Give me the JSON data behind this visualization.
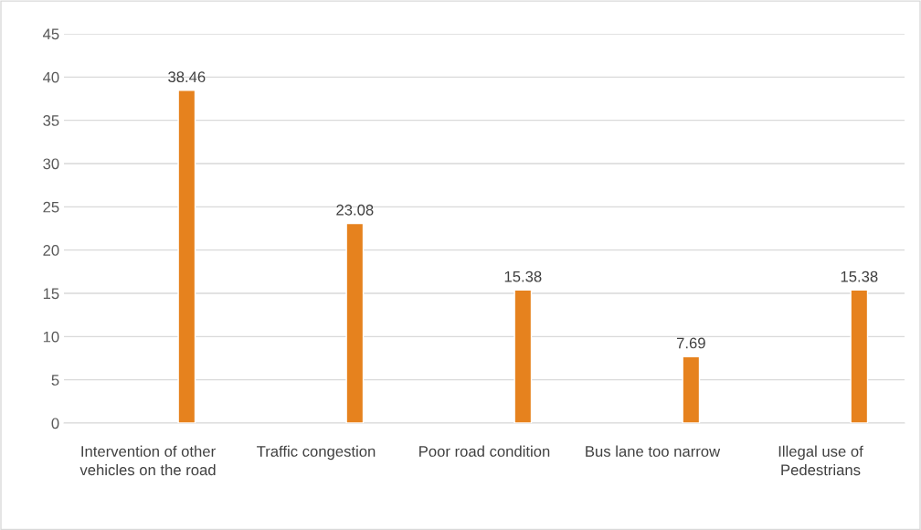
{
  "chart_data": {
    "type": "bar",
    "categories": [
      "Intervention of other vehicles on the road",
      "Traffic congestion",
      "Poor road condition",
      "Bus lane too narrow",
      "Illegal use of Pedestrians"
    ],
    "values": [
      38.46,
      23.08,
      15.38,
      7.69,
      15.38
    ],
    "color": "#e6821e",
    "ylim": [
      0,
      45
    ],
    "yticks": [
      0,
      5,
      10,
      15,
      20,
      25,
      30,
      35,
      40,
      45
    ],
    "grid": "y",
    "data_labels": true
  }
}
